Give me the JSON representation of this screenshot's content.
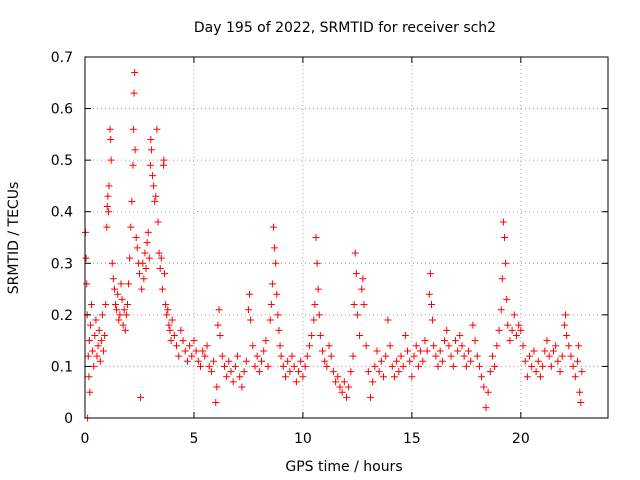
{
  "chart_data": {
    "type": "scatter",
    "title": "Day 195 of 2022, SRMTID for receiver sch2",
    "xlabel": "GPS time / hours",
    "ylabel": "SRMTID / TECUs",
    "xlim": [
      0,
      24
    ],
    "ylim": [
      0,
      0.7
    ],
    "x_ticks": [
      0,
      5,
      10,
      15,
      20
    ],
    "x_tick_labels": [
      "0",
      "5",
      "10",
      "15",
      "20"
    ],
    "y_ticks": [
      0,
      0.1,
      0.2,
      0.3,
      0.4,
      0.5,
      0.6,
      0.7
    ],
    "y_tick_labels": [
      "0",
      "0.1",
      "0.2",
      "0.3",
      "0.4",
      "0.5",
      "0.6",
      "0.7"
    ],
    "grid": true,
    "marker": "+",
    "color": "#ff0000",
    "series": [
      {
        "name": "SRMTID",
        "points": [
          [
            0.02,
            0.36
          ],
          [
            0.05,
            0.31
          ],
          [
            0.08,
            0.26
          ],
          [
            0.1,
            0.2
          ],
          [
            0.12,
            0.0
          ],
          [
            0.15,
            0.12
          ],
          [
            0.18,
            0.08
          ],
          [
            0.2,
            0.15
          ],
          [
            0.22,
            0.05
          ],
          [
            0.25,
            0.18
          ],
          [
            0.3,
            0.22
          ],
          [
            0.35,
            0.13
          ],
          [
            0.4,
            0.1
          ],
          [
            0.45,
            0.16
          ],
          [
            0.5,
            0.19
          ],
          [
            0.55,
            0.12
          ],
          [
            0.6,
            0.14
          ],
          [
            0.65,
            0.17
          ],
          [
            0.7,
            0.11
          ],
          [
            0.75,
            0.15
          ],
          [
            0.8,
            0.2
          ],
          [
            0.85,
            0.13
          ],
          [
            0.9,
            0.16
          ],
          [
            0.95,
            0.22
          ],
          [
            1.0,
            0.37
          ],
          [
            1.02,
            0.41
          ],
          [
            1.05,
            0.43
          ],
          [
            1.08,
            0.4
          ],
          [
            1.1,
            0.45
          ],
          [
            1.15,
            0.56
          ],
          [
            1.18,
            0.54
          ],
          [
            1.2,
            0.5
          ],
          [
            1.25,
            0.3
          ],
          [
            1.3,
            0.27
          ],
          [
            1.35,
            0.25
          ],
          [
            1.4,
            0.22
          ],
          [
            1.45,
            0.21
          ],
          [
            1.5,
            0.24
          ],
          [
            1.55,
            0.19
          ],
          [
            1.6,
            0.2
          ],
          [
            1.65,
            0.26
          ],
          [
            1.7,
            0.23
          ],
          [
            1.75,
            0.18
          ],
          [
            1.8,
            0.21
          ],
          [
            1.85,
            0.17
          ],
          [
            1.9,
            0.2
          ],
          [
            1.95,
            0.22
          ],
          [
            2.0,
            0.26
          ],
          [
            2.05,
            0.31
          ],
          [
            2.1,
            0.37
          ],
          [
            2.15,
            0.42
          ],
          [
            2.2,
            0.49
          ],
          [
            2.22,
            0.56
          ],
          [
            2.25,
            0.63
          ],
          [
            2.28,
            0.67
          ],
          [
            2.3,
            0.52
          ],
          [
            2.35,
            0.35
          ],
          [
            2.4,
            0.33
          ],
          [
            2.45,
            0.3
          ],
          [
            2.5,
            0.28
          ],
          [
            2.55,
            0.04
          ],
          [
            2.6,
            0.25
          ],
          [
            2.65,
            0.3
          ],
          [
            2.7,
            0.27
          ],
          [
            2.75,
            0.32
          ],
          [
            2.8,
            0.29
          ],
          [
            2.85,
            0.34
          ],
          [
            2.9,
            0.36
          ],
          [
            2.95,
            0.31
          ],
          [
            3.0,
            0.49
          ],
          [
            3.02,
            0.54
          ],
          [
            3.05,
            0.52
          ],
          [
            3.1,
            0.47
          ],
          [
            3.15,
            0.45
          ],
          [
            3.2,
            0.42
          ],
          [
            3.25,
            0.43
          ],
          [
            3.3,
            0.56
          ],
          [
            3.35,
            0.38
          ],
          [
            3.4,
            0.32
          ],
          [
            3.45,
            0.29
          ],
          [
            3.5,
            0.31
          ],
          [
            3.55,
            0.25
          ],
          [
            3.6,
            0.49
          ],
          [
            3.62,
            0.5
          ],
          [
            3.65,
            0.28
          ],
          [
            3.7,
            0.22
          ],
          [
            3.75,
            0.2
          ],
          [
            3.8,
            0.21
          ],
          [
            3.85,
            0.18
          ],
          [
            3.9,
            0.17
          ],
          [
            3.95,
            0.15
          ],
          [
            4.0,
            0.19
          ],
          [
            4.1,
            0.16
          ],
          [
            4.2,
            0.14
          ],
          [
            4.3,
            0.12
          ],
          [
            4.4,
            0.17
          ],
          [
            4.5,
            0.15
          ],
          [
            4.6,
            0.13
          ],
          [
            4.7,
            0.11
          ],
          [
            4.8,
            0.14
          ],
          [
            4.9,
            0.12
          ],
          [
            5.0,
            0.15
          ],
          [
            5.1,
            0.13
          ],
          [
            5.2,
            0.11
          ],
          [
            5.3,
            0.1
          ],
          [
            5.4,
            0.13
          ],
          [
            5.5,
            0.12
          ],
          [
            5.6,
            0.14
          ],
          [
            5.7,
            0.1
          ],
          [
            5.8,
            0.09
          ],
          [
            5.9,
            0.11
          ],
          [
            6.0,
            0.03
          ],
          [
            6.05,
            0.06
          ],
          [
            6.1,
            0.18
          ],
          [
            6.15,
            0.21
          ],
          [
            6.2,
            0.16
          ],
          [
            6.3,
            0.12
          ],
          [
            6.4,
            0.1
          ],
          [
            6.5,
            0.08
          ],
          [
            6.6,
            0.11
          ],
          [
            6.7,
            0.09
          ],
          [
            6.8,
            0.07
          ],
          [
            6.9,
            0.1
          ],
          [
            7.0,
            0.12
          ],
          [
            7.1,
            0.08
          ],
          [
            7.2,
            0.06
          ],
          [
            7.3,
            0.09
          ],
          [
            7.4,
            0.11
          ],
          [
            7.5,
            0.21
          ],
          [
            7.55,
            0.24
          ],
          [
            7.6,
            0.19
          ],
          [
            7.7,
            0.14
          ],
          [
            7.8,
            0.1
          ],
          [
            7.9,
            0.12
          ],
          [
            8.0,
            0.09
          ],
          [
            8.1,
            0.11
          ],
          [
            8.2,
            0.13
          ],
          [
            8.3,
            0.15
          ],
          [
            8.4,
            0.1
          ],
          [
            8.5,
            0.19
          ],
          [
            8.55,
            0.22
          ],
          [
            8.6,
            0.26
          ],
          [
            8.65,
            0.37
          ],
          [
            8.7,
            0.33
          ],
          [
            8.75,
            0.3
          ],
          [
            8.8,
            0.24
          ],
          [
            8.85,
            0.2
          ],
          [
            8.9,
            0.17
          ],
          [
            8.95,
            0.14
          ],
          [
            9.0,
            0.12
          ],
          [
            9.1,
            0.1
          ],
          [
            9.2,
            0.08
          ],
          [
            9.3,
            0.11
          ],
          [
            9.4,
            0.09
          ],
          [
            9.5,
            0.12
          ],
          [
            9.6,
            0.1
          ],
          [
            9.7,
            0.07
          ],
          [
            9.8,
            0.09
          ],
          [
            9.9,
            0.11
          ],
          [
            10.0,
            0.08
          ],
          [
            10.1,
            0.1
          ],
          [
            10.2,
            0.12
          ],
          [
            10.3,
            0.14
          ],
          [
            10.4,
            0.16
          ],
          [
            10.5,
            0.19
          ],
          [
            10.55,
            0.22
          ],
          [
            10.6,
            0.35
          ],
          [
            10.65,
            0.3
          ],
          [
            10.7,
            0.25
          ],
          [
            10.75,
            0.2
          ],
          [
            10.8,
            0.16
          ],
          [
            10.9,
            0.13
          ],
          [
            11.0,
            0.11
          ],
          [
            11.1,
            0.1
          ],
          [
            11.2,
            0.14
          ],
          [
            11.3,
            0.12
          ],
          [
            11.4,
            0.09
          ],
          [
            11.5,
            0.07
          ],
          [
            11.6,
            0.08
          ],
          [
            11.7,
            0.06
          ],
          [
            11.8,
            0.05
          ],
          [
            11.9,
            0.07
          ],
          [
            12.0,
            0.04
          ],
          [
            12.1,
            0.06
          ],
          [
            12.2,
            0.09
          ],
          [
            12.3,
            0.12
          ],
          [
            12.35,
            0.22
          ],
          [
            12.4,
            0.32
          ],
          [
            12.45,
            0.28
          ],
          [
            12.5,
            0.2
          ],
          [
            12.6,
            0.16
          ],
          [
            12.7,
            0.25
          ],
          [
            12.75,
            0.27
          ],
          [
            12.8,
            0.22
          ],
          [
            12.9,
            0.14
          ],
          [
            13.0,
            0.09
          ],
          [
            13.1,
            0.04
          ],
          [
            13.2,
            0.07
          ],
          [
            13.3,
            0.1
          ],
          [
            13.4,
            0.13
          ],
          [
            13.5,
            0.09
          ],
          [
            13.6,
            0.11
          ],
          [
            13.7,
            0.08
          ],
          [
            13.8,
            0.12
          ],
          [
            13.9,
            0.19
          ],
          [
            14.0,
            0.14
          ],
          [
            14.1,
            0.1
          ],
          [
            14.2,
            0.08
          ],
          [
            14.3,
            0.11
          ],
          [
            14.4,
            0.09
          ],
          [
            14.5,
            0.12
          ],
          [
            14.6,
            0.1
          ],
          [
            14.7,
            0.16
          ],
          [
            14.8,
            0.13
          ],
          [
            14.9,
            0.11
          ],
          [
            15.0,
            0.08
          ],
          [
            15.1,
            0.12
          ],
          [
            15.2,
            0.14
          ],
          [
            15.3,
            0.1
          ],
          [
            15.4,
            0.13
          ],
          [
            15.5,
            0.11
          ],
          [
            15.6,
            0.15
          ],
          [
            15.7,
            0.13
          ],
          [
            15.8,
            0.24
          ],
          [
            15.85,
            0.28
          ],
          [
            15.9,
            0.22
          ],
          [
            15.95,
            0.19
          ],
          [
            16.0,
            0.14
          ],
          [
            16.1,
            0.12
          ],
          [
            16.2,
            0.1
          ],
          [
            16.3,
            0.13
          ],
          [
            16.4,
            0.11
          ],
          [
            16.5,
            0.15
          ],
          [
            16.6,
            0.17
          ],
          [
            16.7,
            0.14
          ],
          [
            16.8,
            0.12
          ],
          [
            16.9,
            0.1
          ],
          [
            17.0,
            0.15
          ],
          [
            17.1,
            0.13
          ],
          [
            17.2,
            0.16
          ],
          [
            17.3,
            0.14
          ],
          [
            17.4,
            0.12
          ],
          [
            17.5,
            0.1
          ],
          [
            17.6,
            0.13
          ],
          [
            17.7,
            0.11
          ],
          [
            17.8,
            0.18
          ],
          [
            17.9,
            0.15
          ],
          [
            18.0,
            0.12
          ],
          [
            18.1,
            0.1
          ],
          [
            18.2,
            0.08
          ],
          [
            18.3,
            0.06
          ],
          [
            18.4,
            0.02
          ],
          [
            18.5,
            0.05
          ],
          [
            18.6,
            0.09
          ],
          [
            18.7,
            0.12
          ],
          [
            18.8,
            0.1
          ],
          [
            18.9,
            0.14
          ],
          [
            19.0,
            0.17
          ],
          [
            19.1,
            0.21
          ],
          [
            19.15,
            0.27
          ],
          [
            19.2,
            0.38
          ],
          [
            19.25,
            0.35
          ],
          [
            19.3,
            0.3
          ],
          [
            19.35,
            0.23
          ],
          [
            19.4,
            0.18
          ],
          [
            19.5,
            0.15
          ],
          [
            19.6,
            0.17
          ],
          [
            19.7,
            0.2
          ],
          [
            19.8,
            0.16
          ],
          [
            19.9,
            0.18
          ],
          [
            20.0,
            0.17
          ],
          [
            20.1,
            0.14
          ],
          [
            20.2,
            0.11
          ],
          [
            20.3,
            0.08
          ],
          [
            20.4,
            0.12
          ],
          [
            20.5,
            0.1
          ],
          [
            20.6,
            0.13
          ],
          [
            20.7,
            0.09
          ],
          [
            20.8,
            0.11
          ],
          [
            20.9,
            0.08
          ],
          [
            21.0,
            0.1
          ],
          [
            21.1,
            0.13
          ],
          [
            21.2,
            0.15
          ],
          [
            21.3,
            0.12
          ],
          [
            21.4,
            0.1
          ],
          [
            21.5,
            0.13
          ],
          [
            21.6,
            0.14
          ],
          [
            21.7,
            0.11
          ],
          [
            21.8,
            0.09
          ],
          [
            21.9,
            0.12
          ],
          [
            22.0,
            0.18
          ],
          [
            22.05,
            0.2
          ],
          [
            22.1,
            0.16
          ],
          [
            22.2,
            0.14
          ],
          [
            22.3,
            0.12
          ],
          [
            22.4,
            0.1
          ],
          [
            22.5,
            0.08
          ],
          [
            22.6,
            0.11
          ],
          [
            22.65,
            0.14
          ],
          [
            22.7,
            0.05
          ],
          [
            22.75,
            0.03
          ],
          [
            22.8,
            0.09
          ]
        ]
      }
    ]
  }
}
